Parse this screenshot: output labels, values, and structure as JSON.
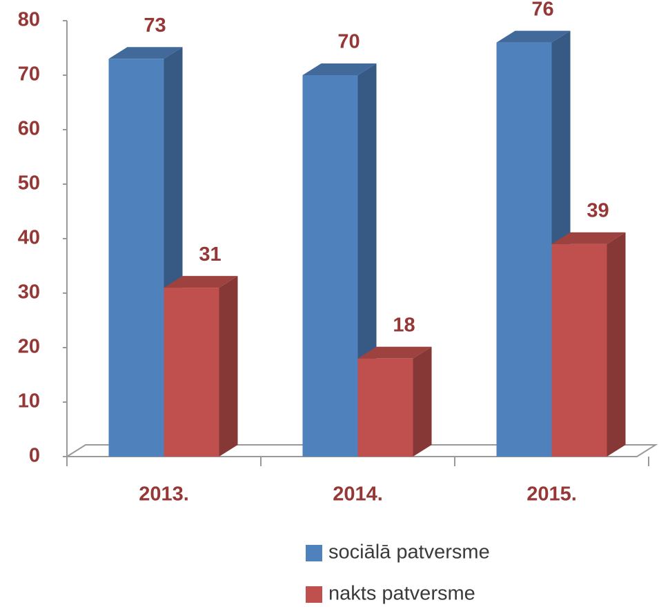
{
  "chart_data": {
    "type": "bar3d",
    "categories": [
      "2013.",
      "2014.",
      "2015."
    ],
    "series": [
      {
        "name": "sociālā patversme",
        "color": "#4f81bd",
        "values": [
          73,
          70,
          76
        ]
      },
      {
        "name": "nakts patversme",
        "color": "#c0504d",
        "values": [
          31,
          18,
          39
        ]
      }
    ],
    "ylim": [
      0,
      80
    ],
    "yticks": [
      0,
      10,
      20,
      30,
      40,
      50,
      60,
      70,
      80
    ],
    "label_color": "#953735"
  }
}
